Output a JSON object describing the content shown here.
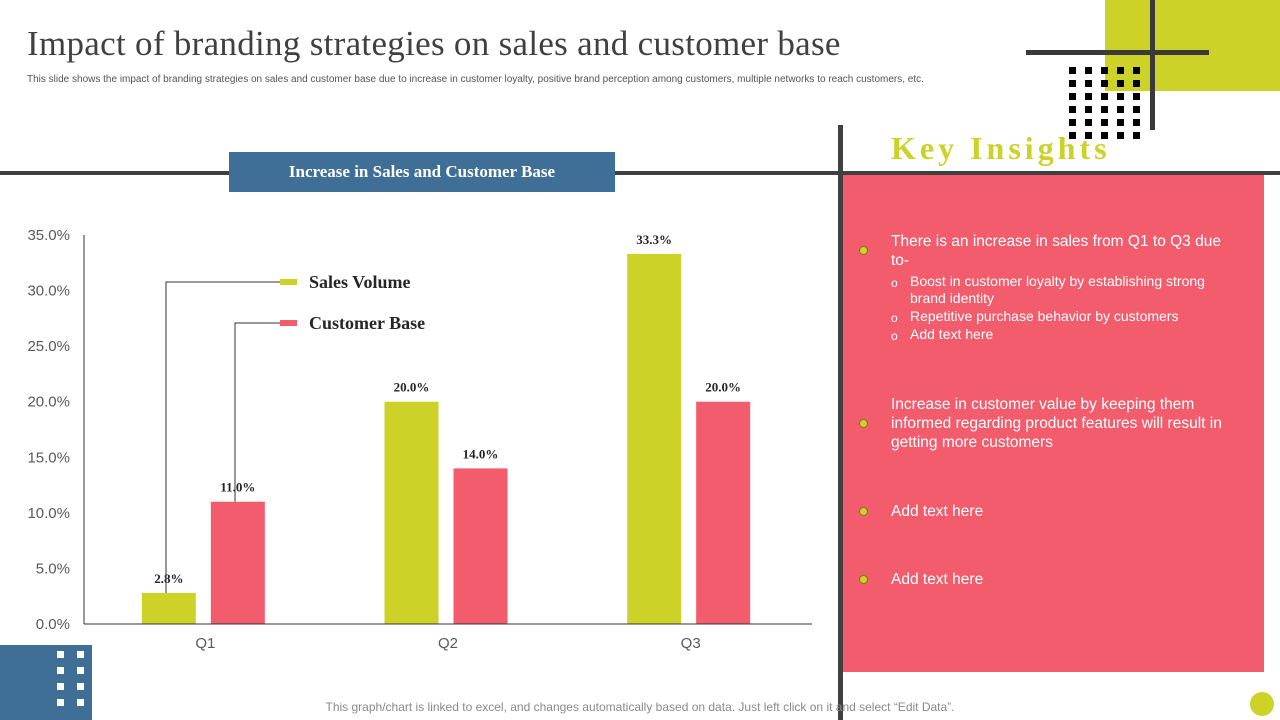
{
  "title": "Impact of  branding strategies on sales and customer base",
  "subtitle": "This slide shows the impact of branding strategies on sales and customer base due to increase in customer loyalty, positive brand perception among customers, multiple networks to reach customers, etc.",
  "chart_header": "Increase in Sales and Customer Base",
  "chart_data": {
    "type": "bar",
    "title": "Increase in Sales and Customer Base",
    "categories": [
      "Q1",
      "Q2",
      "Q3"
    ],
    "series": [
      {
        "name": "Sales Volume",
        "color": "#cdd228",
        "values": [
          2.8,
          20.0,
          33.3
        ],
        "labels": [
          "2.8%",
          "20.0%",
          "33.3%"
        ]
      },
      {
        "name": "Customer Base",
        "color": "#f25c6c",
        "values": [
          11.0,
          14.0,
          20.0
        ],
        "labels": [
          "11.0%",
          "14.0%",
          "20.0%"
        ]
      }
    ],
    "ylim": [
      0,
      35
    ],
    "yticks": [
      "0.0%",
      "5.0%",
      "10.0%",
      "15.0%",
      "20.0%",
      "25.0%",
      "30.0%",
      "35.0%"
    ],
    "xlabel": "",
    "ylabel": "",
    "grid": false
  },
  "insights": {
    "title": "Key Insights",
    "items": [
      {
        "text": "There is an increase in sales from Q1 to Q3 due to-",
        "subitems": [
          "Boost in customer loyalty by establishing strong brand identity",
          "Repetitive purchase behavior by customers",
          "Add text here"
        ]
      },
      {
        "text": "Increase in customer value by keeping them informed regarding product features will result in getting more customers"
      },
      {
        "text": "Add text here"
      },
      {
        "text": "Add text here"
      }
    ],
    "sub_marker": "o"
  },
  "footnote": "This graph/chart is linked to excel, and changes automatically based on data. Just left click on it and select “Edit Data”."
}
